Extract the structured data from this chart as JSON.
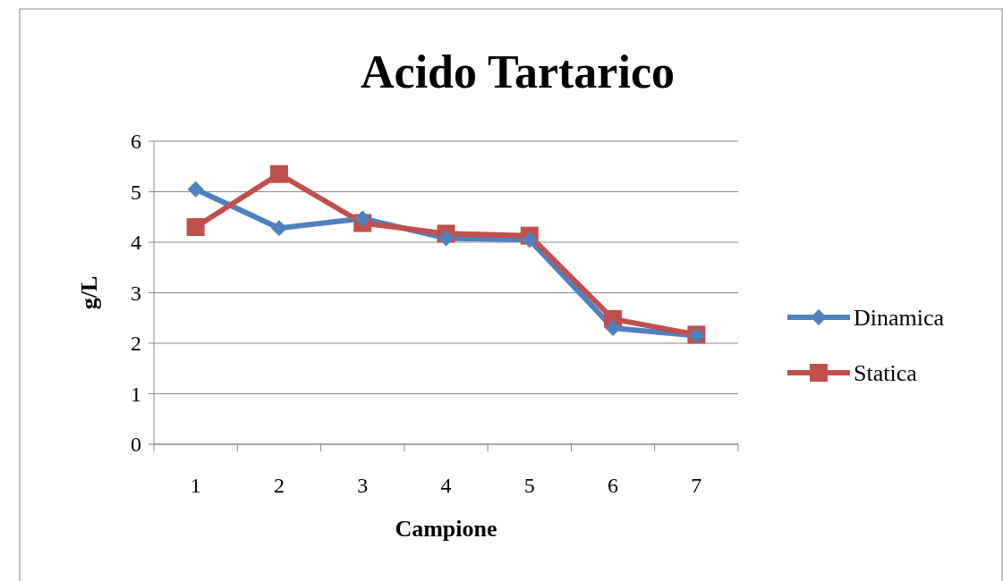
{
  "chart_data": {
    "type": "line",
    "title": "Acido Tartarico",
    "xlabel": "Campione",
    "ylabel": "g/L",
    "categories": [
      "1",
      "2",
      "3",
      "4",
      "5",
      "6",
      "7"
    ],
    "series": [
      {
        "name": "Dinamica",
        "color": "#4f81bd",
        "marker": "diamond",
        "values": [
          5.05,
          4.28,
          4.47,
          4.08,
          4.05,
          2.3,
          2.15
        ]
      },
      {
        "name": "Statica",
        "color": "#c0504d",
        "marker": "square",
        "values": [
          4.3,
          5.35,
          4.38,
          4.17,
          4.13,
          2.48,
          2.17
        ]
      }
    ],
    "ylim": [
      0,
      6
    ],
    "yticks": [
      0,
      1,
      2,
      3,
      4,
      5,
      6
    ],
    "grid": "y",
    "legend": "right"
  }
}
